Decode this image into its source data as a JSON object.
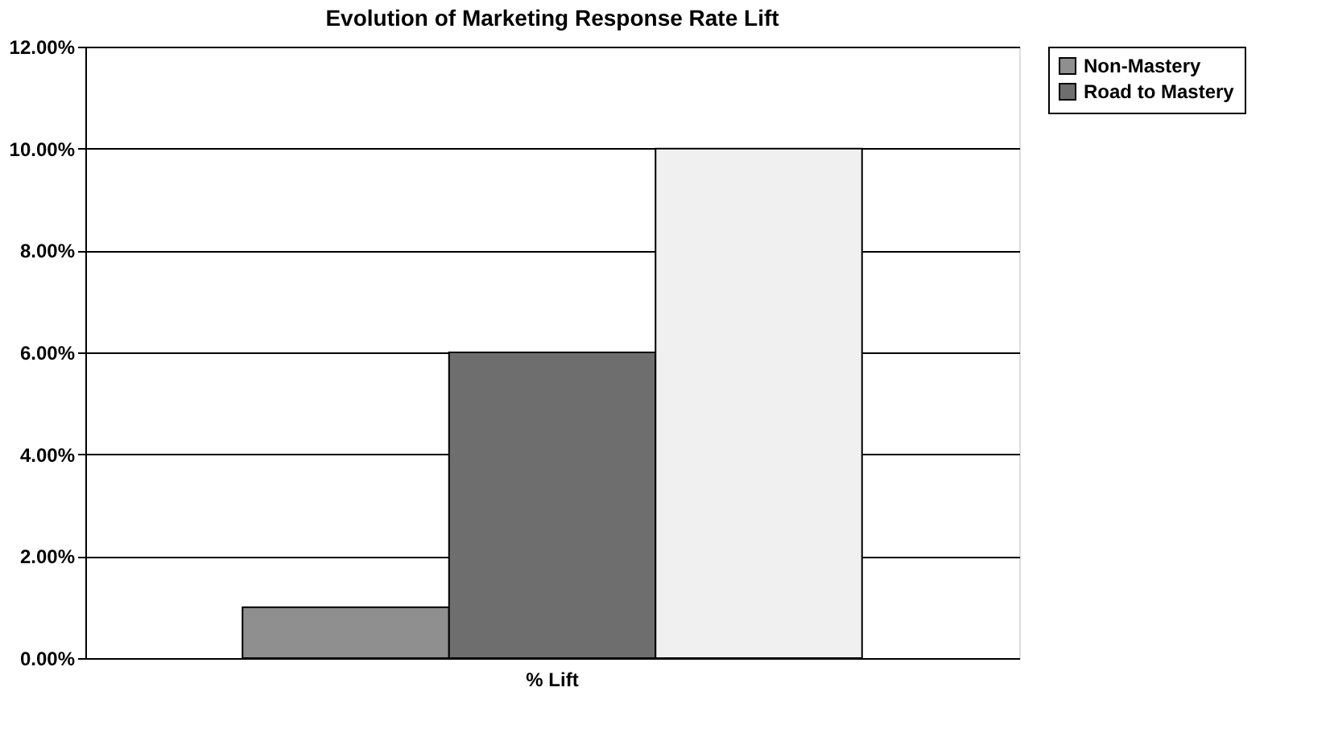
{
  "chart_data": {
    "type": "bar",
    "title": "Evolution of Marketing Response Rate Lift",
    "categories": [
      "% Lift"
    ],
    "series": [
      {
        "name": "Non-Mastery",
        "color": "#8f8f8f",
        "values": [
          1
        ]
      },
      {
        "name": "Road to Mastery",
        "color": "#6e6e6e",
        "values": [
          6
        ]
      },
      {
        "color": "#f0f0f0",
        "values": [
          10
        ]
      }
    ],
    "ylim": [
      0,
      12
    ],
    "yticks": [
      {
        "value": 0,
        "label": "0.00%"
      },
      {
        "value": 2,
        "label": "2.00%"
      },
      {
        "value": 4,
        "label": "4.00%"
      },
      {
        "value": 6,
        "label": "6.00%"
      },
      {
        "value": 8,
        "label": "8.00%"
      },
      {
        "value": 10,
        "label": "10.00%"
      },
      {
        "value": 12,
        "label": "12.00%"
      }
    ],
    "grid": "y",
    "legend": "right"
  }
}
